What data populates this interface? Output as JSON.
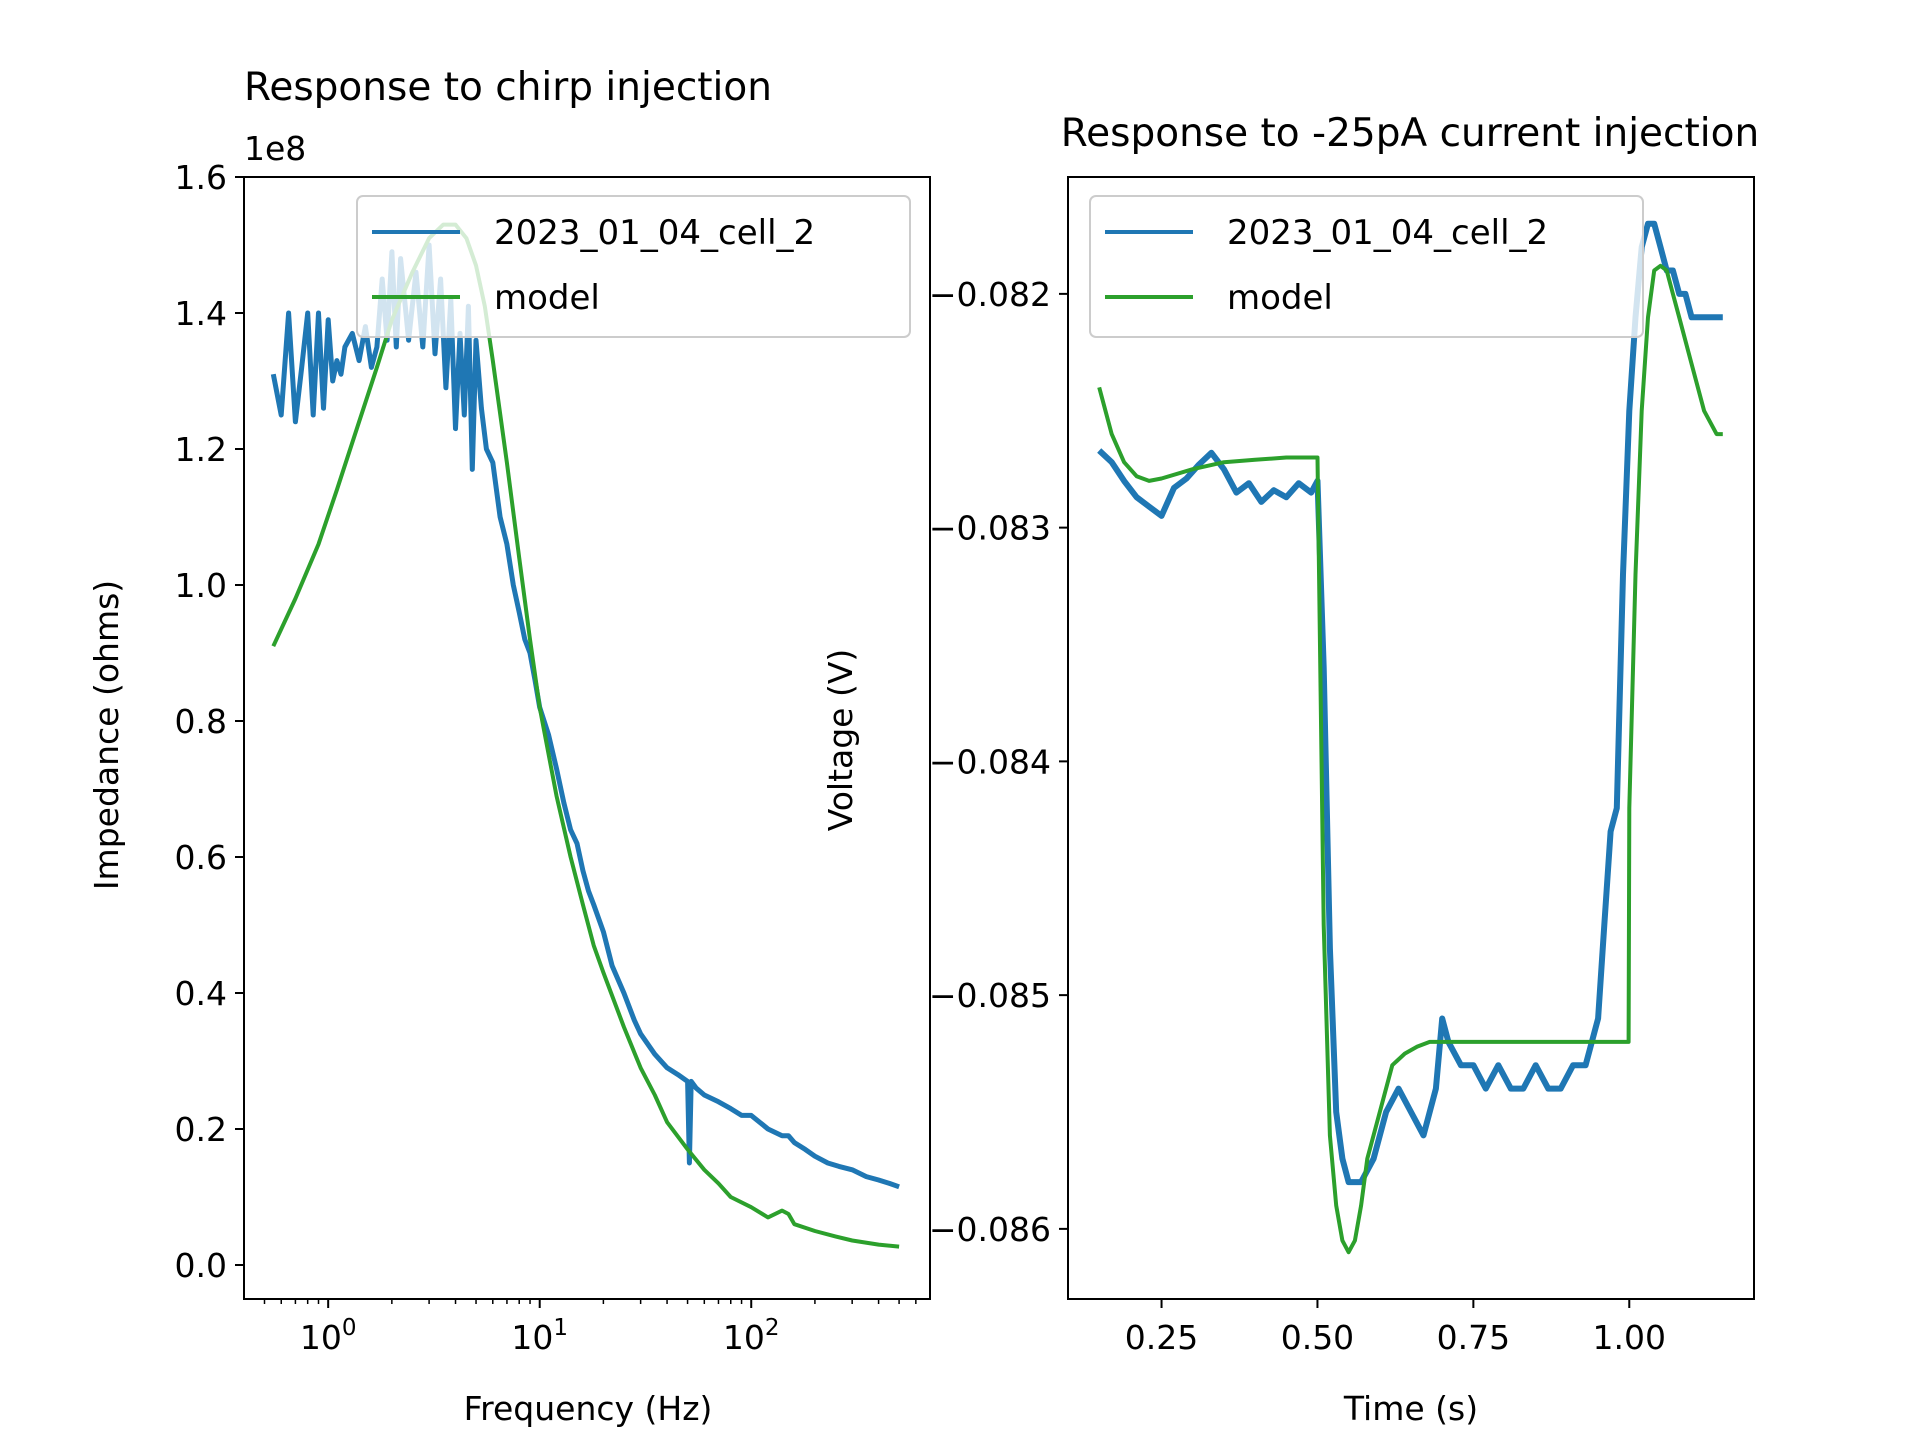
{
  "chart_data": [
    {
      "type": "line",
      "title": "Response to chirp injection",
      "xlabel": "Frequency (Hz)",
      "ylabel": "Impedance (ohms)",
      "y_offset_text": "1e8",
      "xscale": "log",
      "xlim": [
        0.4,
        700
      ],
      "ylim": [
        -0.05,
        1.6
      ],
      "y_multiplier": 100000000,
      "x_ticks": [
        {
          "value": 1,
          "base": "10",
          "exp": "0"
        },
        {
          "value": 10,
          "base": "10",
          "exp": "1"
        },
        {
          "value": 100,
          "base": "10",
          "exp": "2"
        }
      ],
      "y_ticks": [
        "0.0",
        "0.2",
        "0.4",
        "0.6",
        "0.8",
        "1.0",
        "1.2",
        "1.4",
        "1.6"
      ],
      "grid": false,
      "legend_position": "upper right",
      "series": [
        {
          "name": "2023_01_04_cell_2",
          "color": "#1f77b4",
          "x": [
            0.55,
            0.6,
            0.65,
            0.7,
            0.75,
            0.8,
            0.85,
            0.9,
            0.95,
            1.0,
            1.05,
            1.1,
            1.15,
            1.2,
            1.3,
            1.4,
            1.5,
            1.6,
            1.7,
            1.8,
            1.9,
            2.0,
            2.1,
            2.2,
            2.4,
            2.6,
            2.8,
            3.0,
            3.2,
            3.4,
            3.6,
            3.8,
            4.0,
            4.2,
            4.4,
            4.6,
            4.8,
            5.0,
            5.3,
            5.6,
            6.0,
            6.5,
            7.0,
            7.5,
            8.0,
            8.5,
            9.0,
            9.5,
            10,
            11,
            12,
            13,
            14,
            15,
            16,
            17,
            18,
            20,
            22,
            25,
            28,
            30,
            35,
            40,
            45,
            50,
            51,
            52,
            55,
            60,
            70,
            80,
            90,
            100,
            120,
            140,
            150,
            160,
            180,
            200,
            230,
            260,
            300,
            350,
            400,
            450,
            500
          ],
          "values": [
            1.31,
            1.25,
            1.4,
            1.24,
            1.32,
            1.4,
            1.25,
            1.4,
            1.26,
            1.39,
            1.3,
            1.33,
            1.31,
            1.35,
            1.37,
            1.33,
            1.38,
            1.32,
            1.35,
            1.45,
            1.36,
            1.49,
            1.35,
            1.48,
            1.36,
            1.46,
            1.35,
            1.5,
            1.34,
            1.45,
            1.29,
            1.42,
            1.23,
            1.37,
            1.25,
            1.41,
            1.17,
            1.36,
            1.26,
            1.2,
            1.18,
            1.1,
            1.06,
            1.0,
            0.96,
            0.92,
            0.9,
            0.86,
            0.82,
            0.78,
            0.73,
            0.68,
            0.64,
            0.62,
            0.58,
            0.55,
            0.53,
            0.49,
            0.44,
            0.4,
            0.36,
            0.34,
            0.31,
            0.29,
            0.28,
            0.27,
            0.15,
            0.27,
            0.26,
            0.25,
            0.24,
            0.23,
            0.22,
            0.22,
            0.2,
            0.19,
            0.19,
            0.18,
            0.17,
            0.16,
            0.15,
            0.145,
            0.14,
            0.13,
            0.125,
            0.12,
            0.115
          ]
        },
        {
          "name": "model",
          "color": "#2ca02c",
          "x": [
            0.55,
            0.7,
            0.9,
            1.1,
            1.4,
            1.7,
            2.0,
            2.5,
            3.0,
            3.5,
            4.0,
            4.5,
            5.0,
            5.5,
            6.0,
            7.0,
            8.0,
            9.0,
            10,
            12,
            14,
            16,
            18,
            20,
            25,
            30,
            35,
            40,
            50,
            60,
            70,
            80,
            100,
            120,
            140,
            150,
            160,
            200,
            250,
            300,
            400,
            500
          ],
          "values": [
            0.91,
            0.98,
            1.06,
            1.14,
            1.24,
            1.32,
            1.39,
            1.46,
            1.51,
            1.53,
            1.53,
            1.51,
            1.47,
            1.41,
            1.33,
            1.18,
            1.04,
            0.92,
            0.82,
            0.69,
            0.6,
            0.53,
            0.47,
            0.43,
            0.35,
            0.29,
            0.25,
            0.21,
            0.17,
            0.14,
            0.12,
            0.1,
            0.085,
            0.07,
            0.08,
            0.075,
            0.06,
            0.05,
            0.042,
            0.036,
            0.03,
            0.027
          ]
        }
      ]
    },
    {
      "type": "line",
      "title": "Response to -25pA current injection",
      "xlabel": "Time (s)",
      "ylabel": "Voltage (V)",
      "xlim": [
        0.1,
        1.2
      ],
      "ylim": [
        -0.0863,
        -0.0815
      ],
      "x_ticks": [
        "0.25",
        "0.50",
        "0.75",
        "1.00"
      ],
      "y_ticks": [
        "−0.082",
        "−0.083",
        "−0.084",
        "−0.085",
        "−0.086"
      ],
      "grid": false,
      "legend_position": "upper left",
      "series": [
        {
          "name": "2023_01_04_cell_2",
          "color": "#1f77b4",
          "x": [
            0.15,
            0.17,
            0.19,
            0.21,
            0.23,
            0.25,
            0.27,
            0.29,
            0.31,
            0.33,
            0.35,
            0.37,
            0.39,
            0.41,
            0.43,
            0.45,
            0.47,
            0.49,
            0.5,
            0.51,
            0.52,
            0.53,
            0.54,
            0.55,
            0.57,
            0.59,
            0.61,
            0.63,
            0.65,
            0.67,
            0.69,
            0.7,
            0.71,
            0.73,
            0.75,
            0.77,
            0.79,
            0.81,
            0.83,
            0.85,
            0.87,
            0.89,
            0.91,
            0.93,
            0.95,
            0.96,
            0.97,
            0.98,
            0.99,
            1.0,
            1.01,
            1.02,
            1.03,
            1.04,
            1.05,
            1.06,
            1.07,
            1.08,
            1.09,
            1.1,
            1.11,
            1.12,
            1.13,
            1.14,
            1.15
          ],
          "values": [
            -0.08267,
            -0.08272,
            -0.0828,
            -0.08287,
            -0.08291,
            -0.08295,
            -0.08283,
            -0.08279,
            -0.08273,
            -0.08268,
            -0.08275,
            -0.08285,
            -0.08281,
            -0.08289,
            -0.08284,
            -0.08287,
            -0.08281,
            -0.08285,
            -0.0828,
            -0.0836,
            -0.0848,
            -0.0855,
            -0.0857,
            -0.0858,
            -0.0858,
            -0.0857,
            -0.0855,
            -0.0854,
            -0.0855,
            -0.0856,
            -0.0854,
            -0.0851,
            -0.0852,
            -0.0853,
            -0.0853,
            -0.0854,
            -0.0853,
            -0.0854,
            -0.0854,
            -0.0853,
            -0.0854,
            -0.0854,
            -0.0853,
            -0.0853,
            -0.0851,
            -0.0847,
            -0.0843,
            -0.0842,
            -0.0832,
            -0.0825,
            -0.0821,
            -0.0818,
            -0.0817,
            -0.0817,
            -0.0818,
            -0.0819,
            -0.0819,
            -0.082,
            -0.082,
            -0.0821,
            -0.0821,
            -0.0821,
            -0.0821,
            -0.0821,
            -0.0821
          ]
        },
        {
          "name": "model",
          "color": "#2ca02c",
          "x": [
            0.15,
            0.17,
            0.19,
            0.21,
            0.23,
            0.25,
            0.3,
            0.35,
            0.4,
            0.45,
            0.5,
            0.505,
            0.51,
            0.52,
            0.53,
            0.54,
            0.55,
            0.56,
            0.57,
            0.58,
            0.6,
            0.62,
            0.64,
            0.66,
            0.68,
            0.7,
            0.75,
            0.8,
            0.9,
            0.999,
            1.0,
            1.01,
            1.02,
            1.03,
            1.04,
            1.05,
            1.06,
            1.07,
            1.08,
            1.09,
            1.1,
            1.12,
            1.14,
            1.15
          ],
          "values": [
            -0.0824,
            -0.0826,
            -0.08272,
            -0.08278,
            -0.0828,
            -0.08279,
            -0.08275,
            -0.08272,
            -0.08271,
            -0.0827,
            -0.0827,
            -0.0837,
            -0.0847,
            -0.0856,
            -0.0859,
            -0.08605,
            -0.0861,
            -0.08605,
            -0.0859,
            -0.0857,
            -0.0855,
            -0.0853,
            -0.08525,
            -0.08522,
            -0.0852,
            -0.0852,
            -0.0852,
            -0.0852,
            -0.0852,
            -0.0852,
            -0.0842,
            -0.0832,
            -0.0825,
            -0.0821,
            -0.0819,
            -0.08188,
            -0.0819,
            -0.082,
            -0.0821,
            -0.0822,
            -0.0823,
            -0.0825,
            -0.0826,
            -0.0826
          ]
        }
      ]
    }
  ]
}
